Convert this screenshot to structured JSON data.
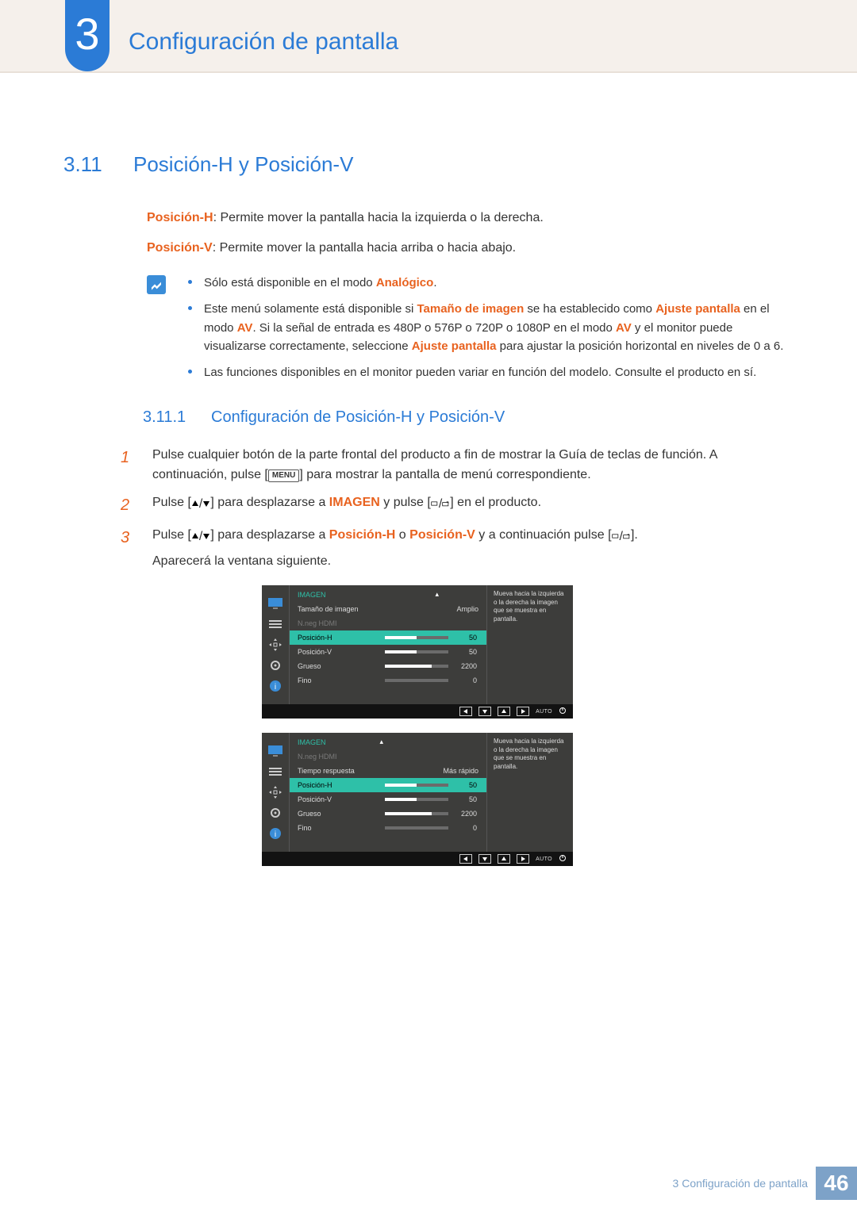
{
  "chapter": {
    "number": "3",
    "title": "Configuración de pantalla"
  },
  "section": {
    "number": "3.11",
    "title": "Posición-H y Posición-V"
  },
  "desc_h_label": "Posición-H",
  "desc_h_text": ": Permite mover la pantalla hacia la izquierda o la derecha.",
  "desc_v_label": "Posición-V",
  "desc_v_text": ": Permite mover la pantalla hacia arriba o hacia abajo.",
  "notes": {
    "n1_a": "Sólo está disponible en el modo ",
    "n1_kw": "Analógico",
    "n1_b": ".",
    "n2_a": "Este menú solamente está disponible si ",
    "n2_kw1": "Tamaño de imagen",
    "n2_b": " se ha establecido como ",
    "n2_kw2": "Ajuste pantalla",
    "n2_c": " en el modo ",
    "n2_kw3": "AV",
    "n2_d": ". Si la señal de entrada es 480P o 576P o 720P o 1080P en el modo ",
    "n2_kw4": "AV",
    "n2_e": " y el monitor puede visualizarse correctamente, seleccione ",
    "n2_kw5": "Ajuste pantalla",
    "n2_f": " para ajustar la posición horizontal en niveles de 0 a 6.",
    "n3": "Las funciones disponibles en el monitor pueden variar en función del modelo. Consulte el producto en sí."
  },
  "subsection": {
    "number": "3.11.1",
    "title": "Configuración de Posición-H y Posición-V"
  },
  "steps": {
    "s1a": "Pulse cualquier botón de la parte frontal del producto a fin de mostrar la Guía de teclas de función. A continuación, pulse [",
    "s1_menu": "MENU",
    "s1b": "] para mostrar la pantalla de menú correspondiente.",
    "s2a": "Pulse [",
    "s2b": "] para desplazarse a ",
    "s2_kw": "IMAGEN",
    "s2c": " y pulse [",
    "s2d": "] en el producto.",
    "s3a": "Pulse [",
    "s3b": "] para desplazarse a ",
    "s3_kw1": "Posición-H",
    "s3c": " o ",
    "s3_kw2": "Posición-V",
    "s3d": " y a continuación pulse [",
    "s3e": "].",
    "s3f": "Aparecerá la ventana siguiente."
  },
  "osd_common": {
    "title": "IMAGEN",
    "auto": "AUTO",
    "hint": "Mueva hacia la izquierda o la derecha la imagen que se muestra en pantalla.",
    "colors": {
      "accent": "#2ec0a8",
      "bg": "#3d3d3b",
      "bar_bg": "#6b6b6b",
      "bar_fill": "#ffffff",
      "bottom_bg": "#121212"
    }
  },
  "osd1": {
    "rows": [
      {
        "label": "Tamaño de imagen",
        "valueText": "Amplio"
      },
      {
        "label": "N.neg HDMI",
        "dim": true
      },
      {
        "label": "Posición-H",
        "value": 50,
        "max": 100,
        "selected": true
      },
      {
        "label": "Posición-V",
        "value": 50,
        "max": 100
      },
      {
        "label": "Grueso",
        "value": 2200,
        "max": 3000
      },
      {
        "label": "Fino",
        "value": 0,
        "max": 100
      }
    ]
  },
  "osd2": {
    "rows": [
      {
        "label": "N.neg HDMI",
        "dim": true
      },
      {
        "label": "Tiempo respuesta",
        "valueText": "Más rápido"
      },
      {
        "label": "Posición-H",
        "value": 50,
        "max": 100,
        "selected": true
      },
      {
        "label": "Posición-V",
        "value": 50,
        "max": 100
      },
      {
        "label": "Grueso",
        "value": 2200,
        "max": 3000
      },
      {
        "label": "Fino",
        "value": 0,
        "max": 100
      }
    ]
  },
  "footer": {
    "text": "3 Configuración de pantalla",
    "page": "46"
  }
}
